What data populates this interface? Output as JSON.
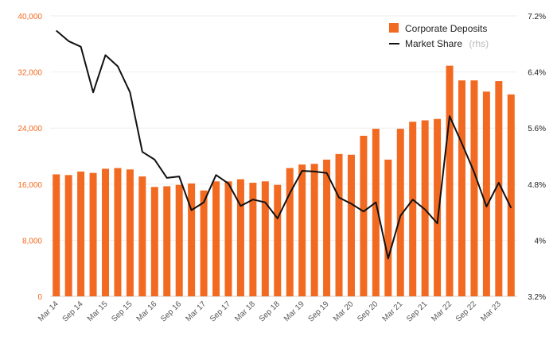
{
  "chart_data": {
    "type": "bar",
    "categories": [
      "Mar 14",
      "Jun 14",
      "Sep 14",
      "Dec 14",
      "Mar 15",
      "Jun 15",
      "Sep 15",
      "Dec 15",
      "Mar 16",
      "Jun 16",
      "Sep 16",
      "Dec 16",
      "Mar 17",
      "Jun 17",
      "Sep 17",
      "Dec 17",
      "Mar 18",
      "Jun 18",
      "Sep 18",
      "Dec 18",
      "Mar 19",
      "Jun 19",
      "Sep 19",
      "Dec 19",
      "Mar 20",
      "Jun 20",
      "Sep 20",
      "Dec 20",
      "Mar 21",
      "Jun 21",
      "Sep 21",
      "Dec 21",
      "Mar 22",
      "Jun 22",
      "Sep 22",
      "Dec 22",
      "Mar 23",
      "Jun 23"
    ],
    "x_tick_labels": [
      "Mar 14",
      "Sep 14",
      "Mar 15",
      "Sep 15",
      "Mar 16",
      "Sep 16",
      "Mar 17",
      "Sep 17",
      "Mar 18",
      "Sep 18",
      "Mar 19",
      "Sep 19",
      "Mar 20",
      "Sep 20",
      "Mar 21",
      "Sep 21",
      "Mar 22",
      "Sep 22",
      "Mar 23"
    ],
    "series": [
      {
        "name": "Corporate Deposits",
        "axis": "left",
        "type": "bar",
        "values": [
          17400,
          17300,
          17800,
          17600,
          18200,
          18300,
          18100,
          17100,
          15600,
          15700,
          15900,
          16100,
          15100,
          16400,
          16400,
          16700,
          16200,
          16400,
          15900,
          18300,
          18800,
          18900,
          19500,
          20300,
          20200,
          22900,
          23900,
          19500,
          23900,
          24900,
          25100,
          25300,
          32900,
          30800,
          30800,
          29200,
          30700,
          28800
        ]
      },
      {
        "name": "Market Share",
        "sub_label": "(rhs)",
        "axis": "right",
        "type": "line",
        "values": [
          6.99,
          6.84,
          6.76,
          6.11,
          6.64,
          6.48,
          6.11,
          5.26,
          5.15,
          4.89,
          4.91,
          4.43,
          4.54,
          4.93,
          4.81,
          4.49,
          4.58,
          4.54,
          4.31,
          4.67,
          4.99,
          4.98,
          4.96,
          4.61,
          4.52,
          4.41,
          4.54,
          3.74,
          4.35,
          4.58,
          4.44,
          4.24,
          5.77,
          5.38,
          4.97,
          4.48,
          4.82,
          4.46
        ]
      }
    ],
    "y_left": {
      "min": 0,
      "max": 40000,
      "ticks": [
        "0",
        "8,000",
        "16,000",
        "24,000",
        "32,000",
        "40,000"
      ]
    },
    "y_right": {
      "min": 3.2,
      "max": 7.2,
      "ticks": [
        "3.2%",
        "4%",
        "4.8%",
        "5.6%",
        "6.4%",
        "7.2%"
      ]
    },
    "colors": {
      "bar": "#f26a21",
      "line": "#111111",
      "grid": "#eeeeee",
      "left_axis_text": "#f26a21"
    },
    "legend": {
      "position": "top-right"
    },
    "title": "",
    "xlabel": "",
    "ylabel": ""
  }
}
